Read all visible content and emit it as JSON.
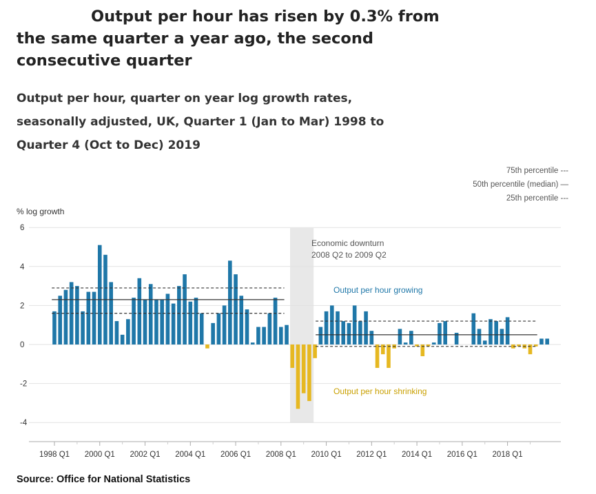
{
  "headline": "Output per hour has risen by 0.3% from the same quarter a year ago, the second consecutive quarter",
  "chart_data": {
    "type": "bar",
    "title": "Output per hour, quarter on year log growth rates, seasonally adjusted, UK, Quarter 1 (Jan to Mar) 1998 to Quarter 4 (Oct to Dec) 2019",
    "ylabel": "% log growth",
    "xlabel": "",
    "ylim": [
      -4,
      6
    ],
    "yticks": [
      -4,
      -2,
      0,
      2,
      4,
      6
    ],
    "grid": "horizontal",
    "xtick_labels": [
      "1998 Q1",
      "2000 Q1",
      "2002 Q1",
      "2004 Q1",
      "2006 Q1",
      "2008 Q1",
      "2010 Q1",
      "2012 Q1",
      "2014 Q1",
      "2016 Q1",
      "2018 Q1"
    ],
    "quarters_start": "1998 Q1",
    "quarters_end": "2019 Q4",
    "values": [
      1.7,
      2.5,
      2.8,
      3.2,
      3.0,
      1.7,
      2.7,
      2.7,
      5.1,
      4.6,
      3.2,
      1.2,
      0.5,
      1.3,
      2.4,
      3.4,
      2.3,
      3.1,
      2.3,
      2.3,
      2.6,
      2.1,
      3.0,
      3.6,
      2.2,
      2.4,
      1.6,
      -0.2,
      1.1,
      1.6,
      2.0,
      4.3,
      3.6,
      2.5,
      1.8,
      0.1,
      0.9,
      0.9,
      1.6,
      2.4,
      0.9,
      1.0,
      -1.2,
      -3.3,
      -2.5,
      -2.9,
      -0.7,
      0.9,
      1.7,
      2.0,
      1.7,
      1.2,
      1.1,
      2.0,
      1.2,
      1.7,
      0.7,
      -1.2,
      -0.5,
      -1.2,
      -0.2,
      0.8,
      0.1,
      0.7,
      -0.1,
      -0.6,
      -0.1,
      0.1,
      1.1,
      1.2,
      0.0,
      0.6,
      0.0,
      0.0,
      1.6,
      0.8,
      0.2,
      1.3,
      1.2,
      0.8,
      1.4,
      -0.2,
      -0.1,
      -0.2,
      -0.5,
      -0.1,
      0.3,
      0.3
    ],
    "colors": {
      "growing": "#1f77a8",
      "shrinking": "#e6b821",
      "downturn_band": "#e8e8e8",
      "median_line": "#333333",
      "percentile_line": "#333333"
    },
    "reference_lines": [
      {
        "period": "1998 Q1 to 2008 Q1",
        "p25": 1.6,
        "median": 2.3,
        "p75": 2.9
      },
      {
        "period": "2009 Q3 to 2019 Q4",
        "p25": -0.1,
        "median": 0.5,
        "p75": 1.2
      }
    ],
    "legend": {
      "p75": "75th percentile ---",
      "median": "50th percentile (median) —",
      "p25": "25th percentile ---"
    },
    "annotations": {
      "downturn_title": "Economic downturn",
      "downturn_period": "2008 Q2 to 2009 Q2",
      "growing": "Output per hour growing",
      "shrinking": "Output per hour shrinking"
    }
  },
  "source": "Source: Office for National Statistics"
}
